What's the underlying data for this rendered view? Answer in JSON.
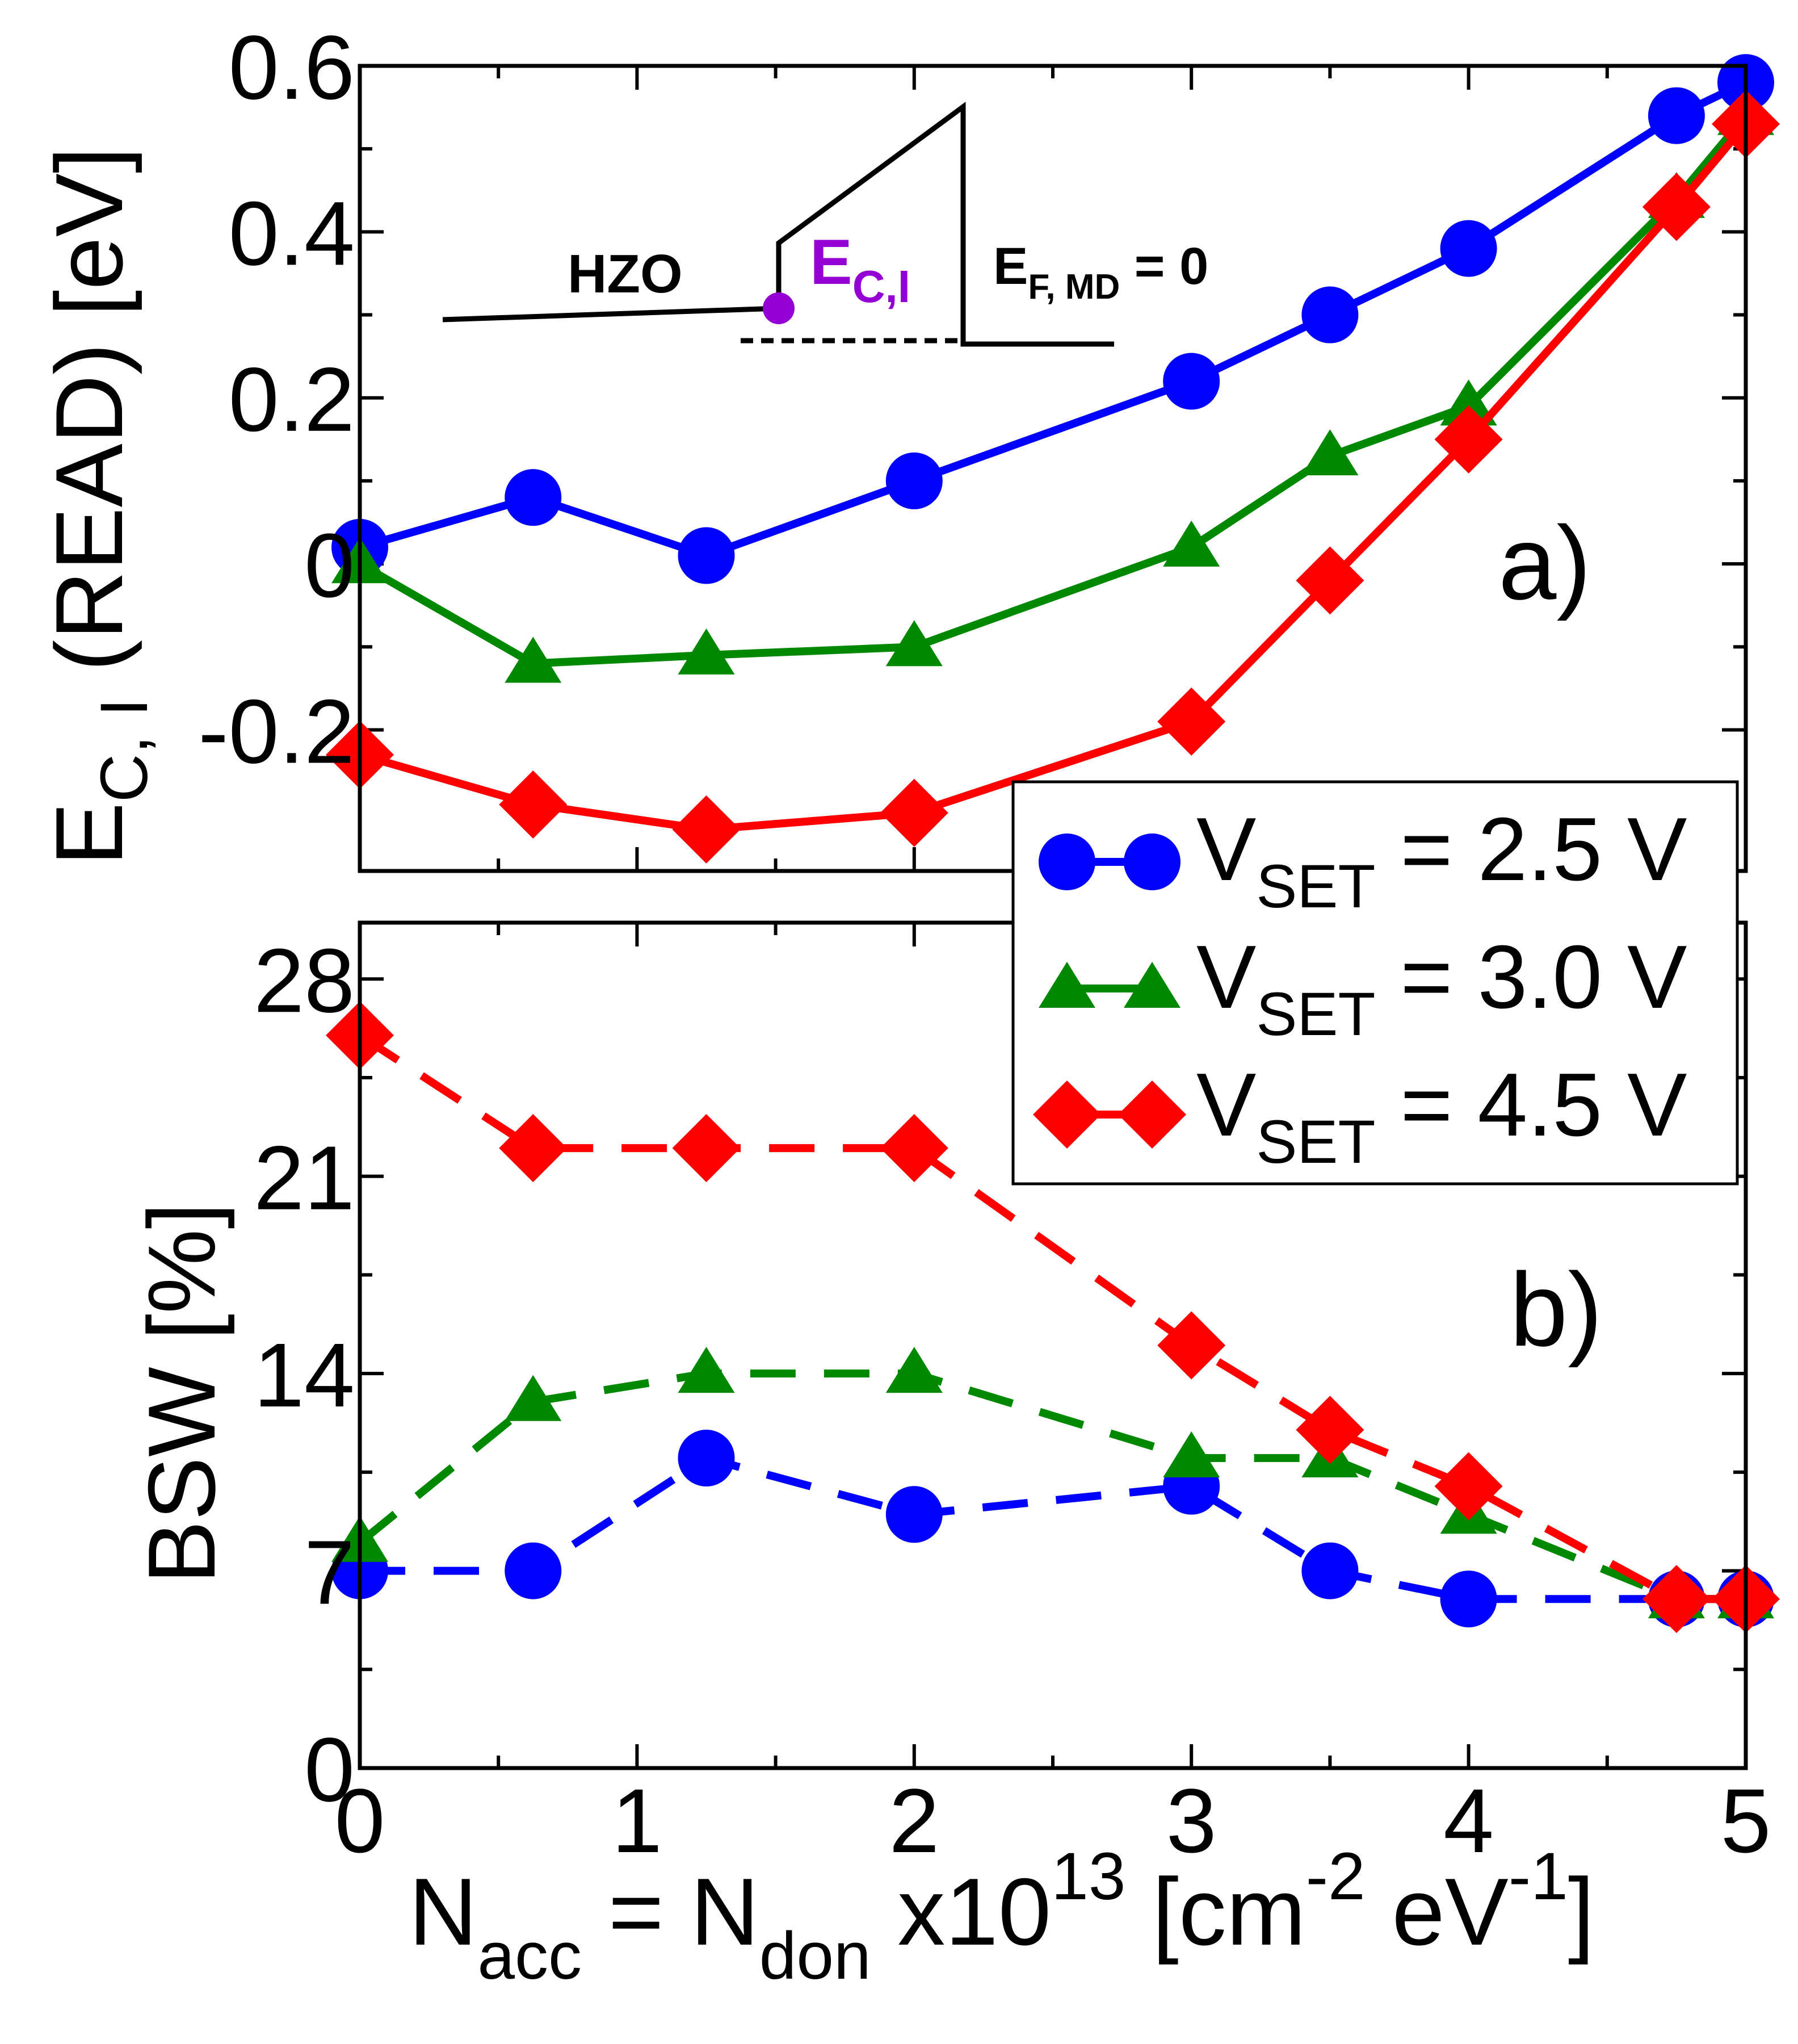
{
  "chart_data": {
    "type": "line",
    "x": [
      0,
      0.625,
      1.25,
      2,
      3,
      3.5,
      4,
      4.75,
      5
    ],
    "xlim": [
      0,
      5
    ],
    "xticks": [
      "0",
      "1",
      "2",
      "3",
      "4",
      "5"
    ],
    "xlabel": {
      "main": "N",
      "sub1": "acc",
      "mid": " = N",
      "sub2": "don",
      "post": " x10",
      "sup1": "13",
      "unit1": " [cm",
      "sup2": "-2",
      "unit2": " eV",
      "sup3": "-1",
      "unit3": "]"
    },
    "legend": {
      "position": "right, between panels",
      "entries": [
        {
          "pre": "V",
          "sub": "SET",
          "post": " = 2.5 V"
        },
        {
          "pre": "V",
          "sub": "SET",
          "post": " = 3.0 V"
        },
        {
          "pre": "V",
          "sub": "SET",
          "post": " = 4.5 V"
        }
      ]
    },
    "panels": [
      {
        "id": "a",
        "label": "a)",
        "ylabel": {
          "pre": "E",
          "sub": "C, I",
          "post": " (READ) [eV]"
        },
        "ylim": [
          -0.37,
          0.6
        ],
        "yticks": [
          {
            "v": 0.6,
            "t": "0.6"
          },
          {
            "v": 0.4,
            "t": "0.4"
          },
          {
            "v": 0.2,
            "t": "0.2"
          },
          {
            "v": 0,
            "t": "0"
          },
          {
            "v": -0.2,
            "t": "-0.2"
          }
        ],
        "inset": {
          "material": "HZO",
          "point_main": "E",
          "point_sub": "C,I",
          "fermi_main": "E",
          "fermi_sub": "F, MD",
          "fermi_post": " = 0"
        },
        "series": [
          {
            "name": "V_SET = 2.5 V",
            "color": "#0000ff",
            "marker": "circle",
            "values": [
              0.02,
              0.08,
              0.01,
              0.1,
              0.22,
              0.3,
              0.38,
              0.54,
              0.58
            ]
          },
          {
            "name": "V_SET = 3.0 V",
            "color": "#008800",
            "marker": "triangle",
            "values": [
              0.0,
              -0.12,
              -0.11,
              -0.1,
              0.02,
              0.13,
              0.19,
              0.44,
              0.54
            ]
          },
          {
            "name": "V_SET = 4.5 V",
            "color": "#ff0000",
            "marker": "diamond",
            "values": [
              -0.23,
              -0.29,
              -0.32,
              -0.3,
              -0.19,
              -0.02,
              0.15,
              0.43,
              0.53
            ]
          }
        ]
      },
      {
        "id": "b",
        "label": "b)",
        "ylabel": {
          "pre": "BSW  [%]"
        },
        "ylim": [
          0,
          30
        ],
        "yticks": [
          {
            "v": 28,
            "t": "28"
          },
          {
            "v": 21,
            "t": "21"
          },
          {
            "v": 14,
            "t": "14"
          },
          {
            "v": 7,
            "t": "7"
          },
          {
            "v": 0,
            "t": "0"
          }
        ],
        "series": [
          {
            "name": "V_SET = 2.5 V",
            "color": "#0000ff",
            "marker": "circle",
            "values": [
              7,
              7,
              11,
              9,
              10,
              7,
              6,
              6,
              6
            ]
          },
          {
            "name": "V_SET = 3.0 V",
            "color": "#008800",
            "marker": "triangle",
            "values": [
              8,
              13,
              14,
              14,
              11,
              11,
              9,
              6,
              6
            ]
          },
          {
            "name": "V_SET = 4.5 V",
            "color": "#ff0000",
            "marker": "diamond",
            "values": [
              26,
              22,
              22,
              22,
              15,
              12,
              10,
              6,
              6
            ]
          }
        ]
      }
    ]
  }
}
